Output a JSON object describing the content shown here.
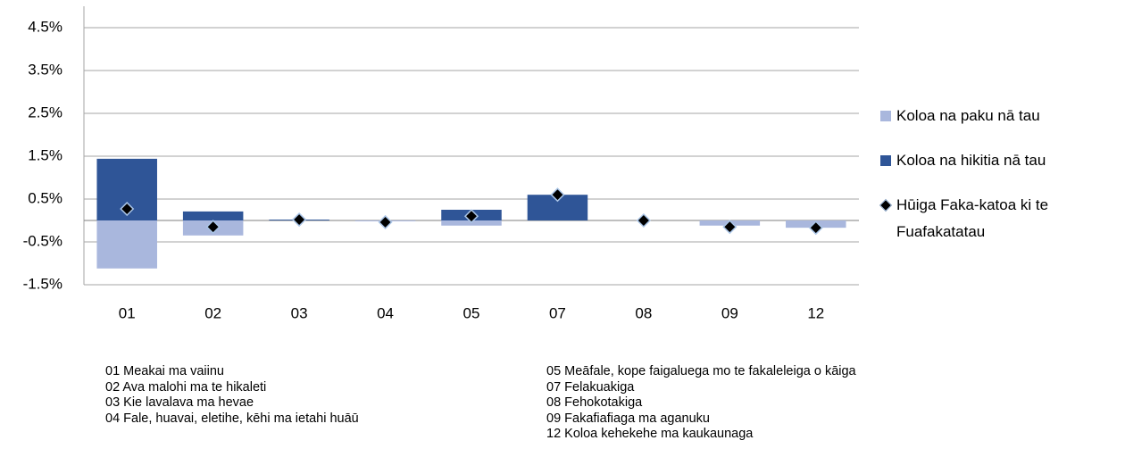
{
  "chart_data": {
    "type": "bar",
    "categories": [
      "01",
      "02",
      "03",
      "04",
      "05",
      "07",
      "08",
      "09",
      "12"
    ],
    "series": [
      {
        "name": "Koloa na paku nā tau",
        "type": "bar",
        "color": "#a9b7dd",
        "values": [
          -1.12,
          -0.35,
          0,
          -0.02,
          -0.12,
          0,
          0,
          -0.12,
          -0.17
        ]
      },
      {
        "name": "Koloa na hikitia nā tau",
        "type": "bar",
        "color": "#2f5597",
        "values": [
          1.44,
          0.21,
          0.02,
          0,
          0.25,
          0.6,
          0,
          0,
          0
        ]
      },
      {
        "name": "Hūiga Faka-katoa ki te Fuafakatatau",
        "type": "scatter",
        "color": "#000000",
        "values": [
          0.27,
          -0.15,
          0.02,
          -0.04,
          0.1,
          0.6,
          0,
          -0.15,
          -0.17
        ]
      }
    ],
    "ylim": [
      -1.5,
      5
    ],
    "yticks": [
      {
        "value": -1.5,
        "label": "-1.5%"
      },
      {
        "value": -0.5,
        "label": "-0.5%"
      },
      {
        "value": 0.5,
        "label": "0.5%"
      },
      {
        "value": 1.5,
        "label": "1.5%"
      },
      {
        "value": 2.5,
        "label": "2.5%"
      },
      {
        "value": 3.5,
        "label": "3.5%"
      },
      {
        "value": 4.5,
        "label": "4.5%"
      }
    ],
    "grid": true,
    "legend": "right",
    "notes": [
      "01 Meakai ma vaiinu",
      "02 Ava malohi ma te hikaleti",
      "03 Kie lavalava  ma hevae",
      "04 Fale, huavai, eletihe, kēhi ma ietahi huāū",
      "05 Meāfale, kope faigaluega mo te fakaleleiga o kāiga",
      "07 Felakuakiga",
      "08 Fehokotakiga",
      "09 Fakafiafiaga ma aganuku",
      "12 Koloa kehekehe ma kaukaunaga"
    ]
  }
}
